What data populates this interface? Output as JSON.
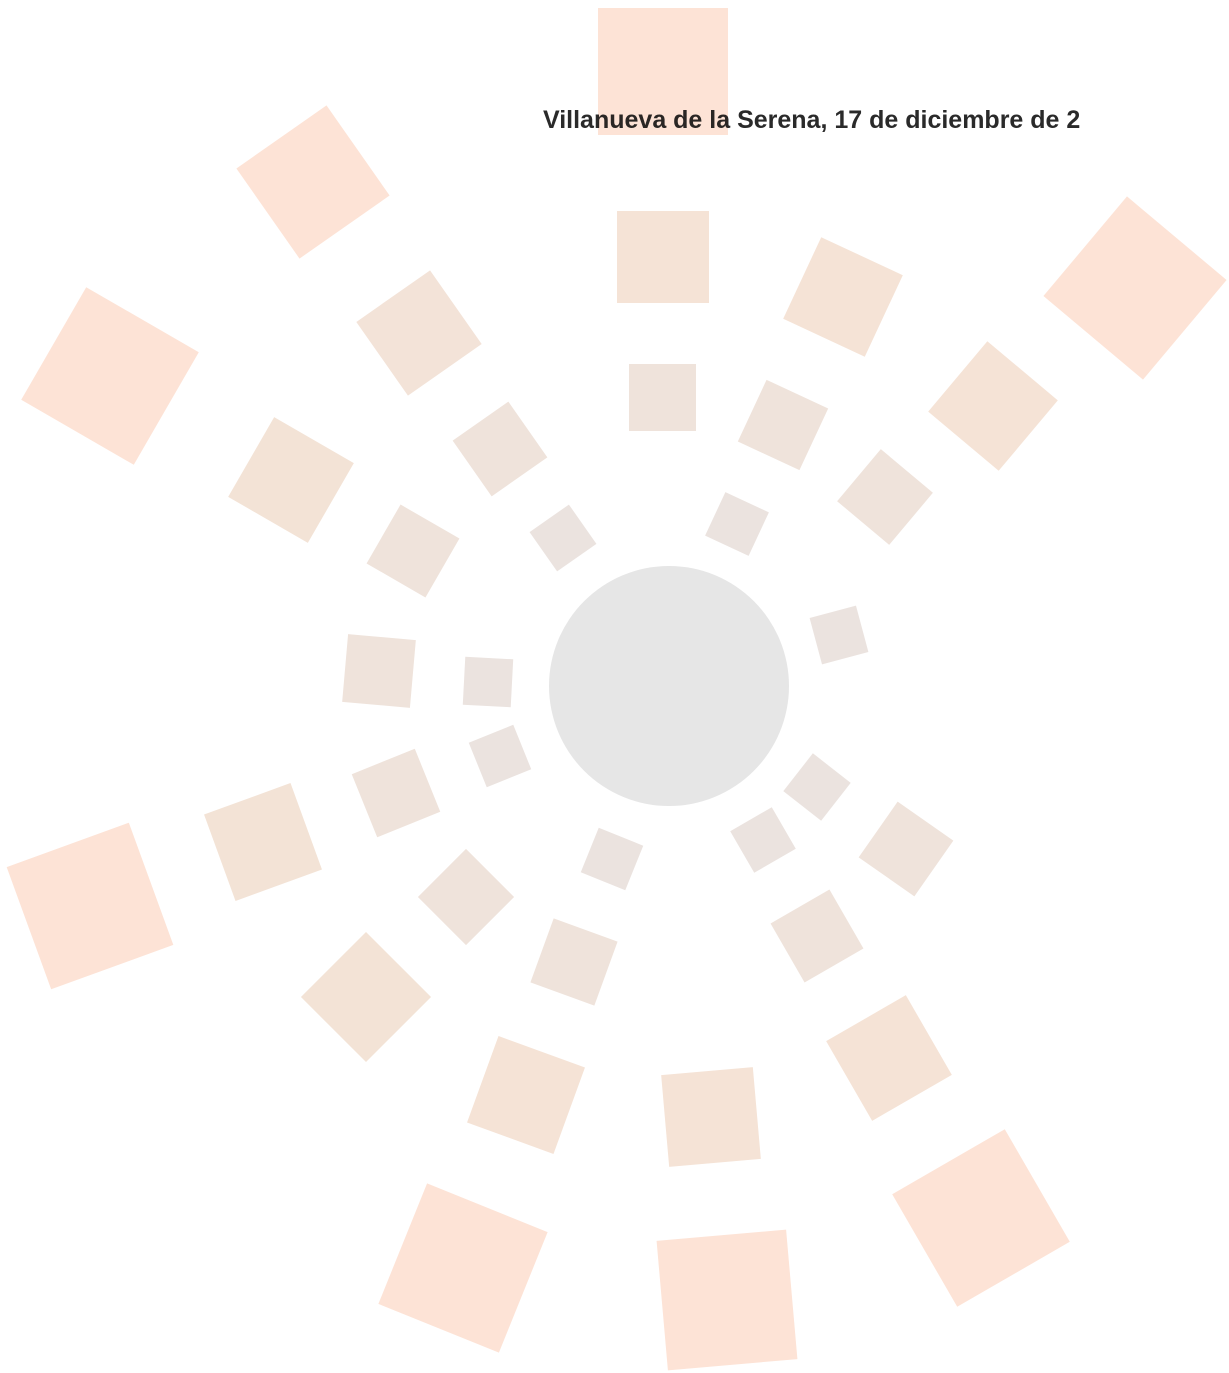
{
  "header": {
    "place_date": "Villanueva de la Serena, 17 de diciembre de 2"
  }
}
